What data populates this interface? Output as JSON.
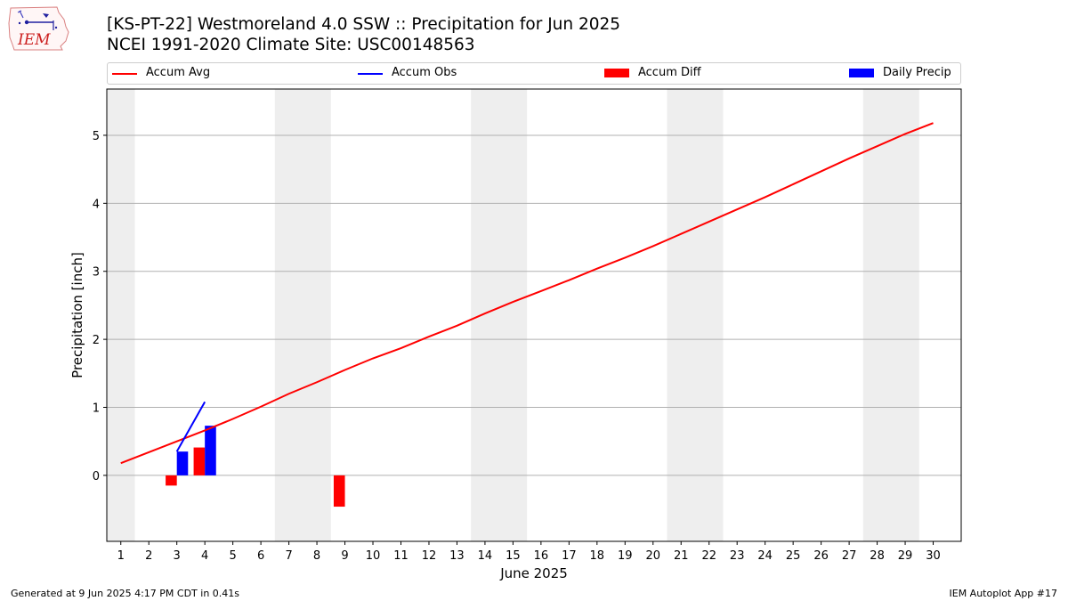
{
  "logo": {
    "text": "IEM",
    "icon": "iem-iowa-logo"
  },
  "title": {
    "line1": "[KS-PT-22] Westmoreland 4.0 SSW :: Precipitation for Jun 2025",
    "line2": "NCEI 1991-2020 Climate Site: USC00148563"
  },
  "legend": {
    "items": [
      {
        "label": "Accum Avg",
        "kind": "line",
        "color": "#ff0000"
      },
      {
        "label": "Accum Obs",
        "kind": "line",
        "color": "#0000ff"
      },
      {
        "label": "Accum Diff",
        "kind": "box",
        "color": "#ff0000"
      },
      {
        "label": "Daily Precip",
        "kind": "box",
        "color": "#0000ff"
      }
    ]
  },
  "footer": {
    "left": "Generated at 9 Jun 2025 4:17 PM CDT in 0.41s",
    "right": "IEM Autoplot App #17"
  },
  "chart_data": {
    "type": "bar",
    "xlabel": "June 2025",
    "ylabel": "Precipitation [inch]",
    "xlim": [
      0.5,
      31
    ],
    "ylim": [
      -0.97,
      5.68
    ],
    "x_ticks": [
      1,
      2,
      3,
      4,
      5,
      6,
      7,
      8,
      9,
      10,
      11,
      12,
      13,
      14,
      15,
      16,
      17,
      18,
      19,
      20,
      21,
      22,
      23,
      24,
      25,
      26,
      27,
      28,
      29,
      30
    ],
    "y_ticks": [
      0,
      1,
      2,
      3,
      4,
      5
    ],
    "grid": "horizontal",
    "weekend_shading_days": [
      [
        0.5,
        1.5
      ],
      [
        6.5,
        8.5
      ],
      [
        13.5,
        15.5
      ],
      [
        20.5,
        22.5
      ],
      [
        27.5,
        29.5
      ]
    ],
    "colors": {
      "accum_avg": "#ff0000",
      "accum_obs": "#0000ff",
      "accum_diff": "#ff0000",
      "daily_precip": "#0000ff",
      "weekend": "#eeeeee"
    },
    "series": [
      {
        "name": "Accum Avg",
        "kind": "line",
        "x": [
          1,
          2,
          3,
          4,
          5,
          6,
          7,
          8,
          9,
          10,
          11,
          12,
          13,
          14,
          15,
          16,
          17,
          18,
          19,
          20,
          21,
          22,
          23,
          24,
          25,
          26,
          27,
          28,
          29,
          30
        ],
        "values": [
          0.18,
          0.34,
          0.5,
          0.66,
          0.83,
          1.01,
          1.2,
          1.37,
          1.55,
          1.72,
          1.87,
          2.04,
          2.2,
          2.38,
          2.55,
          2.71,
          2.87,
          3.04,
          3.2,
          3.37,
          3.55,
          3.73,
          3.91,
          4.09,
          4.28,
          4.47,
          4.66,
          4.84,
          5.02,
          5.18
        ]
      },
      {
        "name": "Accum Obs",
        "kind": "line",
        "x": [
          3,
          4
        ],
        "values": [
          0.35,
          1.08
        ]
      },
      {
        "name": "Accum Diff",
        "kind": "bar",
        "x": [
          2.8,
          3.8,
          8.8
        ],
        "values": [
          -0.15,
          0.41,
          -0.46
        ]
      },
      {
        "name": "Daily Precip",
        "kind": "bar",
        "x": [
          3.2,
          4.2
        ],
        "values": [
          0.35,
          0.73
        ]
      }
    ]
  }
}
